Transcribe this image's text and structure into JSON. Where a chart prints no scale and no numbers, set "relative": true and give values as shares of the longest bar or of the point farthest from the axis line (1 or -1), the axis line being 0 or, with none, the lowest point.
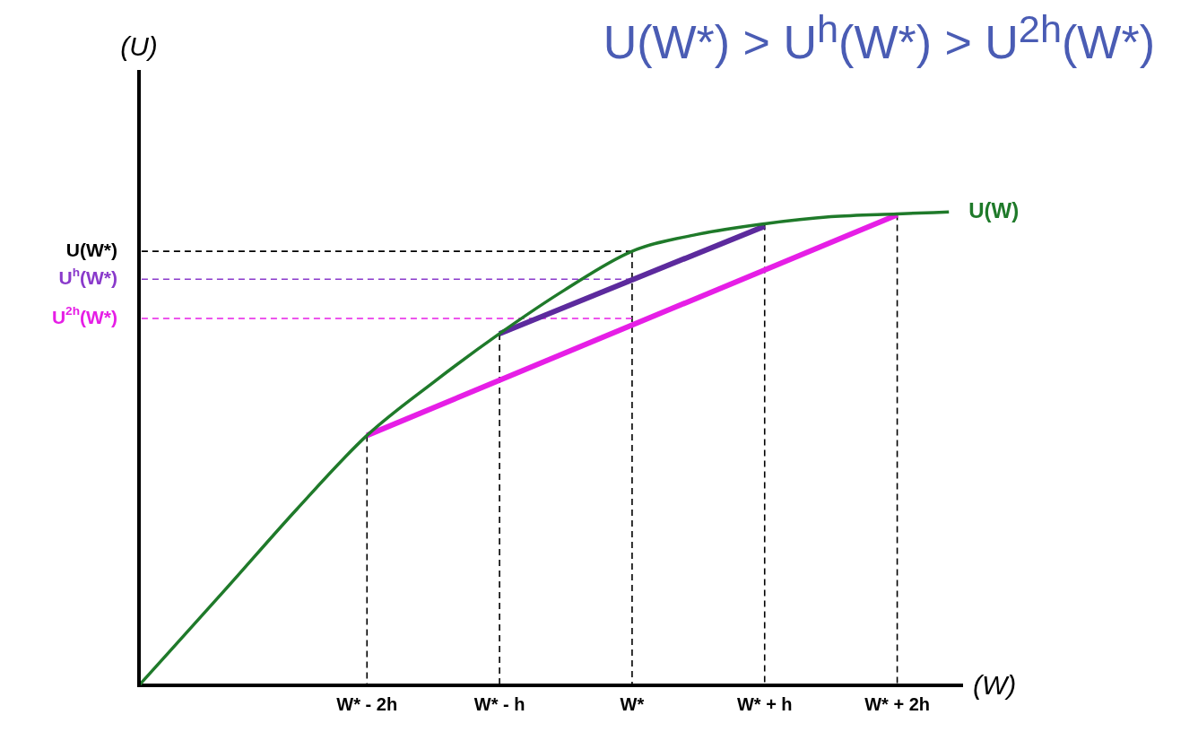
{
  "chart_data": {
    "type": "line",
    "title": "U(W*) > U$^{h}$(W*) > U$^{2h}$(W*)",
    "xlabel": "(W)",
    "annotations": [
      "(U)"
    ],
    "ref_lines": [
      {
        "axis": "x",
        "value": -3.72,
        "color": "#000000"
      }
    ],
    "relative": true,
    "xlim": [
      -3.72,
      2.49
    ],
    "xticks": [
      {
        "value": -2,
        "label": "W* - 2h"
      },
      {
        "value": -1,
        "label": "W* - h"
      },
      {
        "value": 0,
        "label": "W*"
      },
      {
        "value": 1,
        "label": "W* + h"
      },
      {
        "value": 2,
        "label": "W* + 2h"
      }
    ],
    "grid": false,
    "legend": false,
    "marker": "none",
    "series": [
      {
        "name": "U(W)",
        "color": "#1f7a2a",
        "line_style": "solid",
        "x": [
          -3.72,
          -3.07,
          -2.53,
          -2,
          -1.5,
          -1,
          -0.51,
          0,
          0.48,
          1,
          1.5,
          2,
          2.39
        ],
        "values": [
          0,
          0.202,
          0.372,
          0.528,
          0.64,
          0.743,
          0.835,
          0.917,
          0.952,
          0.975,
          0.99,
          0.996,
          1
        ]
      },
      {
        "color": "#e61ee6",
        "line_style": "solid",
        "x": [
          -2,
          2
        ],
        "values": [
          0.528,
          0.994
        ]
      },
      {
        "color": "#5c2a9d",
        "line_style": "solid",
        "x": [
          -1,
          1
        ],
        "values": [
          0.743,
          0.97
        ]
      },
      {
        "name": "U(W*)",
        "color": "#000000",
        "line_style": "dashed",
        "x": [
          0,
          -3.72
        ],
        "values": [
          0.917,
          0.917
        ]
      },
      {
        "name": "U$^{h}$(W*)",
        "color": "#8a3acb",
        "line_style": "dashed",
        "x": [
          0,
          -3.72
        ],
        "values": [
          0.858,
          0.858
        ]
      },
      {
        "name": "U$^{2h}$(W*)",
        "color": "#e61ee6",
        "line_style": "dashed",
        "x": [
          0,
          -3.72
        ],
        "values": [
          0.775,
          0.775
        ]
      },
      {
        "color": "#000000",
        "line_style": "dashed",
        "x": [
          -2,
          -2
        ],
        "values": [
          0.528,
          0
        ]
      },
      {
        "color": "#000000",
        "line_style": "dashed",
        "x": [
          -1,
          -1
        ],
        "values": [
          0.743,
          0
        ]
      },
      {
        "color": "#000000",
        "line_style": "dashed",
        "x": [
          0,
          0
        ],
        "values": [
          0.917,
          0
        ]
      },
      {
        "color": "#000000",
        "line_style": "dashed",
        "x": [
          1,
          1
        ],
        "values": [
          0.975,
          0
        ]
      },
      {
        "color": "#000000",
        "line_style": "dashed",
        "x": [
          2,
          2
        ],
        "values": [
          0.996,
          0
        ]
      }
    ]
  }
}
